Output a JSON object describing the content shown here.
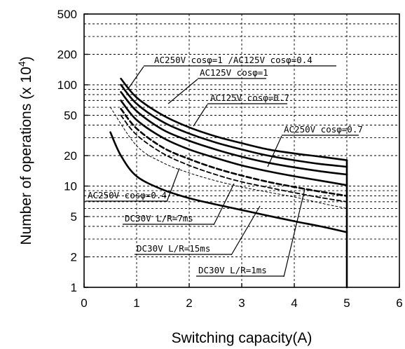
{
  "chart_data": {
    "type": "line",
    "xlabel": "Switching capacity(A)",
    "ylabel_main": "Number of operations (x 10",
    "ylabel_exp": "4",
    "ylabel_tail": ")",
    "xlim": [
      0,
      6
    ],
    "ylim": [
      1,
      500
    ],
    "yscale": "log",
    "grid": true,
    "x_ticks": [
      0,
      1,
      2,
      3,
      4,
      5,
      6
    ],
    "x_tick_labels": [
      "0",
      "1",
      "2",
      "3",
      "4",
      "5",
      "6"
    ],
    "y_ticks": [
      1,
      2,
      5,
      10,
      20,
      50,
      100,
      200,
      500
    ],
    "y_tick_labels": [
      "1",
      "2",
      "5",
      "10",
      "20",
      "50",
      "100",
      "200",
      "500"
    ],
    "y_minor_gridlines": [
      3,
      4,
      6,
      7,
      8,
      9,
      30,
      40,
      60,
      70,
      80,
      90,
      300,
      400
    ],
    "series": [
      {
        "name": "AC250V cosφ=1 /AC125V cosφ=0.4",
        "style": "solid-bold",
        "x": [
          0.7,
          1.0,
          1.5,
          2.0,
          2.5,
          3.0,
          3.5,
          4.0,
          4.5,
          5.0
        ],
        "y": [
          115,
          75,
          50,
          38,
          31,
          26.5,
          23,
          21,
          19.5,
          18
        ]
      },
      {
        "name": "AC125V cosφ=1",
        "style": "solid-bold",
        "x": [
          0.7,
          1.0,
          1.5,
          2.0,
          2.5,
          3.0,
          3.5,
          4.0,
          4.5,
          5.0
        ],
        "y": [
          100,
          65,
          43,
          33,
          27,
          23,
          20,
          18,
          16.5,
          15.5
        ]
      },
      {
        "name": "AC125V cosφ=0.7",
        "style": "solid-bold",
        "x": [
          0.7,
          1.0,
          1.5,
          2.0,
          2.5,
          3.0,
          3.5,
          4.0,
          4.5,
          5.0
        ],
        "y": [
          85,
          55,
          36,
          28,
          23,
          19.5,
          17,
          15.3,
          14,
          13
        ]
      },
      {
        "name": "AC250V cosφ=0.7",
        "style": "solid-bold",
        "x": [
          0.7,
          1.0,
          1.5,
          2.0,
          2.5,
          3.0,
          3.5,
          4.0,
          4.5,
          5.0
        ],
        "y": [
          70,
          45,
          30,
          23,
          19,
          16,
          14,
          12.5,
          11.3,
          10.2
        ]
      },
      {
        "name": "AC250V cosφ=0.4",
        "style": "dashed-bold",
        "x": [
          0.7,
          1.0,
          1.5,
          2.0,
          2.5,
          3.0,
          3.5,
          4.0,
          4.5,
          5.0
        ],
        "y": [
          58,
          37,
          24,
          18.5,
          15,
          12.7,
          11,
          9.8,
          8.8,
          8
        ]
      },
      {
        "name": "DC30V L/R=7ms",
        "style": "dashed-thin",
        "x": [
          0.5,
          1.0,
          1.5,
          2.0,
          2.5,
          3.0,
          3.5,
          4.0,
          4.5,
          5.0
        ],
        "y": [
          60,
          25,
          17,
          13.5,
          11.3,
          9.8,
          8.7,
          7.8,
          6.8,
          6
        ]
      },
      {
        "name": "DC30V L/R=15ms",
        "style": "dashed-medium",
        "x": [
          0.7,
          1.0,
          1.5,
          2.0,
          2.5,
          3.0,
          3.5,
          4.0,
          4.5,
          5.0
        ],
        "y": [
          50,
          32,
          21,
          16,
          13,
          11,
          9.7,
          8.6,
          7.7,
          7
        ]
      },
      {
        "name": "DC30V L/R=1ms",
        "style": "solid-bold",
        "x": [
          0.5,
          0.7,
          1.0,
          1.5,
          2.0,
          2.5,
          3.0,
          3.5,
          4.0,
          4.5,
          5.0
        ],
        "y": [
          34,
          20,
          12.5,
          9.2,
          7.6,
          6.6,
          5.8,
          5.1,
          4.5,
          4,
          3.5
        ]
      }
    ],
    "annotations": [
      {
        "text": "AC250V cosφ=1 /AC125V cosφ=0.4",
        "ref": 0
      },
      {
        "text": "AC125V cosφ=1",
        "ref": 1
      },
      {
        "text": "AC125V cosφ=0.7",
        "ref": 2
      },
      {
        "text": "AC250V cosφ=0.7",
        "ref": 3
      },
      {
        "text": "AC250V cosφ=0.4",
        "ref": 4
      },
      {
        "text": "DC30V L/R=7ms",
        "ref": 5
      },
      {
        "text": "DC30V L/R=15ms",
        "ref": 6
      },
      {
        "text": "DC30V L/R=1ms",
        "ref": 7
      }
    ]
  }
}
